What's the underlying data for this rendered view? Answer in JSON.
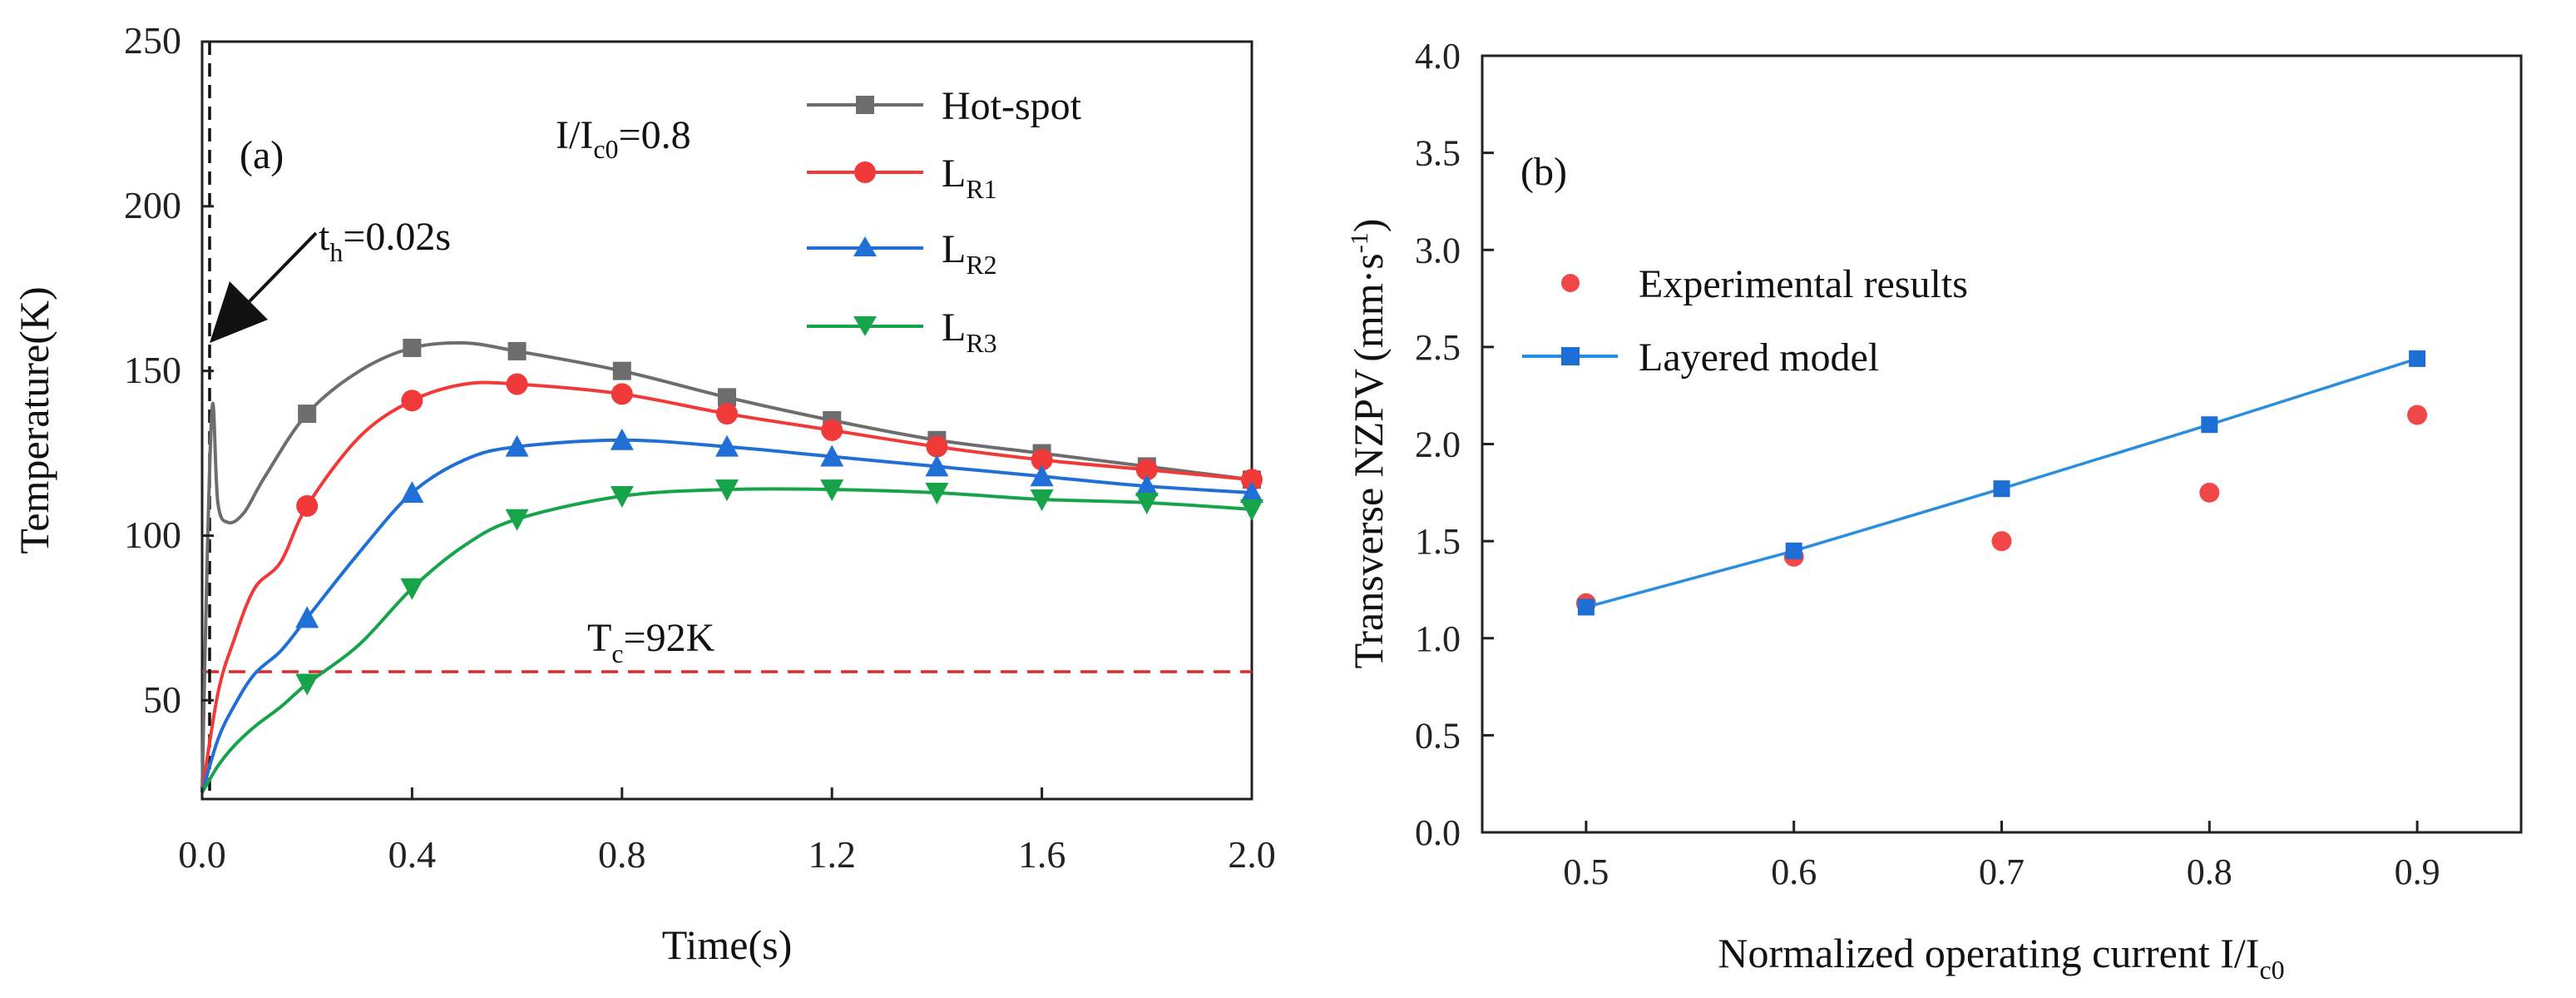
{
  "chart_data": [
    {
      "type": "line",
      "panel_label": "(a)",
      "xlabel": "Time(s)",
      "ylabel": "Temperature(K)",
      "xlim": [
        0.0,
        2.0
      ],
      "ylim": [
        20,
        250
      ],
      "xticks": [
        "0.0",
        "0.4",
        "0.8",
        "1.2",
        "1.6",
        "2.0"
      ],
      "yticks": [
        "50",
        "100",
        "150",
        "200",
        "250"
      ],
      "grid": false,
      "legend_position": "top-right",
      "annotations": {
        "condition": "I/I",
        "condition_sub": "c0",
        "condition_value": "=0.8",
        "heater": "t",
        "heater_sub": "h",
        "heater_value": "=0.02s",
        "tc": "T",
        "tc_sub": "c",
        "tc_value": "=92K"
      },
      "reference_lines": {
        "heater_time_x": 0.02,
        "tc_level_y": 58
      },
      "series": [
        {
          "name": "Hot-spot",
          "name_sub": "",
          "color": "#6d6d6d",
          "marker": "square",
          "x": [
            0,
            0.01,
            0.02,
            0.03,
            0.05,
            0.08,
            0.12,
            0.2,
            0.3,
            0.4,
            0.5,
            0.6,
            0.8,
            1.0,
            1.2,
            1.4,
            1.6,
            1.8,
            2.0
          ],
          "y": [
            22,
            95,
            140,
            110,
            104,
            107,
            118,
            137,
            150,
            157,
            158.5,
            156,
            150,
            142,
            135,
            129,
            125,
            121,
            117
          ],
          "marker_x": [
            0.2,
            0.4,
            0.6,
            0.8,
            1.0,
            1.2,
            1.4,
            1.6,
            1.8,
            2.0
          ]
        },
        {
          "name": "L",
          "name_sub": "R1",
          "color": "#f03a3a",
          "marker": "circle",
          "x": [
            0,
            0.03,
            0.06,
            0.1,
            0.15,
            0.2,
            0.3,
            0.4,
            0.5,
            0.6,
            0.8,
            1.0,
            1.2,
            1.4,
            1.6,
            1.8,
            2.0
          ],
          "y": [
            22,
            52,
            68,
            84,
            92,
            109,
            130,
            141,
            146,
            146,
            143,
            137,
            132,
            127,
            123,
            120,
            117
          ],
          "marker_x": [
            0.2,
            0.4,
            0.6,
            0.8,
            1.0,
            1.2,
            1.4,
            1.6,
            1.8,
            2.0
          ]
        },
        {
          "name": "L",
          "name_sub": "R2",
          "color": "#1f6fd6",
          "marker": "triangle-up",
          "x": [
            0,
            0.03,
            0.06,
            0.1,
            0.15,
            0.2,
            0.3,
            0.4,
            0.5,
            0.6,
            0.8,
            1.0,
            1.2,
            1.4,
            1.6,
            1.8,
            2.0
          ],
          "y": [
            22,
            38,
            48,
            58,
            65,
            75,
            95,
            113,
            123,
            127,
            129,
            127,
            124,
            121,
            118,
            115,
            113
          ],
          "marker_x": [
            0.2,
            0.4,
            0.6,
            0.8,
            1.0,
            1.2,
            1.4,
            1.6,
            1.8,
            2.0
          ]
        },
        {
          "name": "L",
          "name_sub": "R3",
          "color": "#16a34a",
          "marker": "triangle-down",
          "x": [
            0,
            0.03,
            0.06,
            0.1,
            0.15,
            0.2,
            0.3,
            0.4,
            0.5,
            0.6,
            0.8,
            1.0,
            1.2,
            1.4,
            1.6,
            1.8,
            2.0
          ],
          "y": [
            22,
            30,
            36,
            42,
            48,
            55,
            67,
            84,
            97,
            105,
            112,
            114,
            114,
            113,
            111,
            110,
            108
          ],
          "marker_x": [
            0.2,
            0.4,
            0.6,
            0.8,
            1.0,
            1.2,
            1.4,
            1.6,
            1.8,
            2.0
          ]
        }
      ]
    },
    {
      "type": "scatter",
      "panel_label": "(b)",
      "xlabel": "Normalized operating current I/I",
      "xlabel_sub": "c0",
      "ylabel": "Transverse NZPV",
      "ylabel_unit": "(mm·s",
      "ylabel_unit_sup": "-1",
      "ylabel_unit_close": ")",
      "xlim": [
        0.45,
        0.95
      ],
      "ylim": [
        0.0,
        4.0
      ],
      "xticks": [
        "0.5",
        "0.6",
        "0.7",
        "0.8",
        "0.9"
      ],
      "yticks": [
        "0.0",
        "0.5",
        "1.0",
        "1.5",
        "2.0",
        "2.5",
        "3.0",
        "3.5",
        "4.0"
      ],
      "grid": false,
      "legend_position": "upper-left",
      "series": [
        {
          "name": "Experimental results",
          "color": "#f04848",
          "marker": "circle",
          "line": false,
          "x": [
            0.5,
            0.6,
            0.7,
            0.8,
            0.9
          ],
          "y": [
            1.18,
            1.42,
            1.5,
            1.75,
            2.15
          ]
        },
        {
          "name": "Layered model",
          "color": "#1d6fd6",
          "marker": "square",
          "line": true,
          "x": [
            0.5,
            0.6,
            0.7,
            0.8,
            0.9
          ],
          "y": [
            1.16,
            1.45,
            1.77,
            2.1,
            2.44
          ]
        }
      ]
    }
  ]
}
